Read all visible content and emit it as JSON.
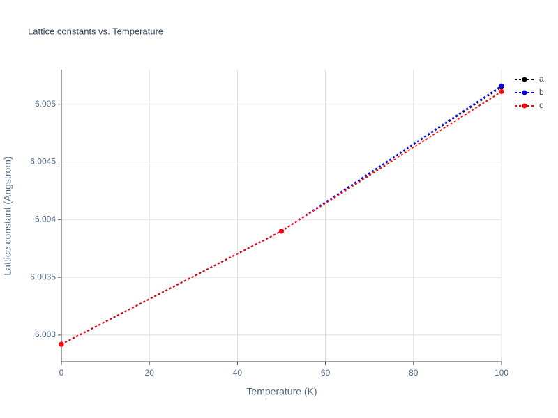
{
  "chart_data": {
    "type": "line",
    "title": "Lattice constants vs. Temperature",
    "xlabel": "Temperature (K)",
    "ylabel": "Lattice constant (Angstrom)",
    "x": [
      0,
      50,
      100
    ],
    "series": [
      {
        "name": "a",
        "color": "#000000",
        "values": [
          6.00292,
          6.0039,
          6.00515
        ]
      },
      {
        "name": "b",
        "color": "#0000ff",
        "values": [
          6.00292,
          6.0039,
          6.00516
        ]
      },
      {
        "name": "c",
        "color": "#ff0000",
        "values": [
          6.00292,
          6.0039,
          6.00511
        ]
      }
    ],
    "xlim": [
      0,
      100
    ],
    "xticks": [
      0,
      20,
      40,
      60,
      80,
      100
    ],
    "ylim": [
      6.00277,
      6.0053
    ],
    "yticks": [
      6.003,
      6.0035,
      6.004,
      6.0045,
      6.005
    ],
    "grid": true
  }
}
